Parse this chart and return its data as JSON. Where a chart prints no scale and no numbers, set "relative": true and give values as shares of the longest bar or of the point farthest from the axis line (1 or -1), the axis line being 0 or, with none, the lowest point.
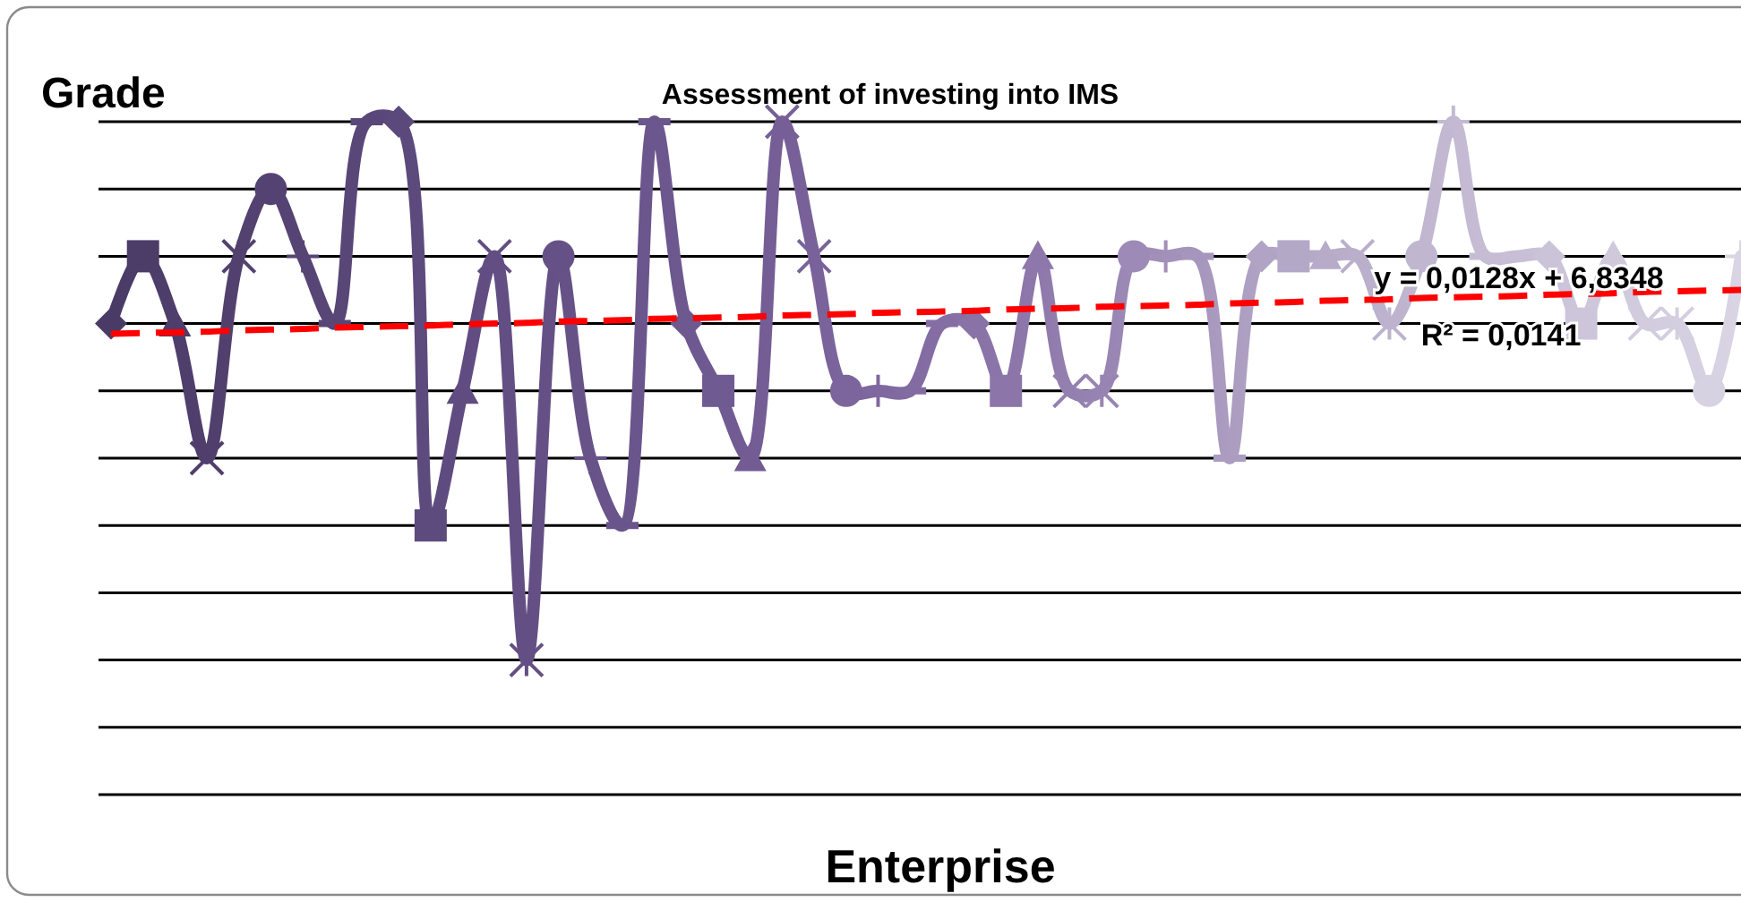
{
  "chart_data": {
    "type": "line",
    "title": "Assessment of investing into IMS",
    "xlabel": "Enterprise",
    "ylabel": "Grade",
    "relative": true,
    "grid": "y",
    "categories": [
      null,
      null,
      null,
      null,
      null,
      null,
      null,
      null,
      null,
      null,
      null,
      null,
      null,
      null,
      null,
      null,
      null,
      null,
      null,
      null,
      null,
      null,
      null,
      null,
      null,
      null,
      null,
      null,
      null,
      null,
      null,
      null,
      null,
      null,
      null,
      null,
      null,
      null,
      null,
      null,
      null,
      null,
      null,
      null,
      null,
      null,
      null,
      null,
      null,
      null,
      null,
      null
    ],
    "series": [
      {
        "marker": "diamond",
        "values": [
          0.7,
          0.8,
          0.7,
          0.5,
          0.8,
          0.9,
          0.8,
          0.7,
          1,
          1,
          0.4,
          0.6,
          0.8,
          0.2,
          0.8,
          0.5,
          0.4,
          1,
          0.7,
          0.6,
          0.5,
          1,
          0.8,
          0.6,
          0.6,
          0.6,
          0.7,
          0.7,
          0.6,
          0.8,
          0.6,
          0.6,
          0.8,
          0.8,
          0.8,
          0.5,
          0.8,
          0.8,
          0.8,
          0.8,
          0.7,
          0.8,
          1,
          0.8,
          0.8,
          0.8,
          0.7,
          0.8,
          0.7,
          0.7,
          0.6,
          0.8
        ],
        "colors": [
          "#4a3b66",
          "#4c3c68",
          "#4e3e6b",
          "#503f6d",
          "#52416f",
          "#544372",
          "#564474",
          "#584676",
          "#5a4779",
          "#5c497b",
          "#5e4b7e",
          "#604c80",
          "#624e82",
          "#644f85",
          "#665187",
          "#685389",
          "#6a548c",
          "#6c568e",
          "#6e5890",
          "#705a92",
          "#735c94",
          "#765f97",
          "#79629a",
          "#7c659c",
          "#7f689f",
          "#826ba1",
          "#856ea4",
          "#8872a6",
          "#8b75a9",
          "#8e78ab",
          "#9480b0",
          "#9884b2",
          "#9d8ab6",
          "#a290b9",
          "#a696bd",
          "#ab9cc0",
          "#b0a3c4",
          "#b4a8c7",
          "#b7abc9",
          "#baafcb",
          "#bdb3ce",
          "#c0b6d0",
          "#c3b9d2",
          "#c6bcd4",
          "#c8bfd6",
          "#cbc3d8",
          "#cdc6da",
          "#d0c9dc",
          "#d2ccde",
          "#d4cfe0",
          "#d7d2e2",
          "#d9d5e4"
        ]
      },
      {
        "color": "#ff0000",
        "line_style": "dashed",
        "values": [
          0.685,
          0.686,
          0.687,
          0.688,
          0.69,
          0.691,
          0.692,
          0.694,
          0.695,
          0.696,
          0.697,
          0.699,
          0.7,
          0.701,
          0.703,
          0.704,
          0.705,
          0.707,
          0.708,
          0.709,
          0.71,
          0.712,
          0.713,
          0.714,
          0.716,
          0.717,
          0.718,
          0.719,
          0.721,
          0.722,
          0.723,
          0.725,
          0.726,
          0.727,
          0.728,
          0.73,
          0.731,
          0.732,
          0.734,
          0.735,
          0.736,
          0.738,
          0.739,
          0.74,
          0.741,
          0.743,
          0.744,
          0.745,
          0.747,
          0.748,
          0.749,
          0.75
        ]
      }
    ],
    "annotations": [
      "y = 0,0128x + 6,8348",
      "R² = 0,0141"
    ]
  }
}
